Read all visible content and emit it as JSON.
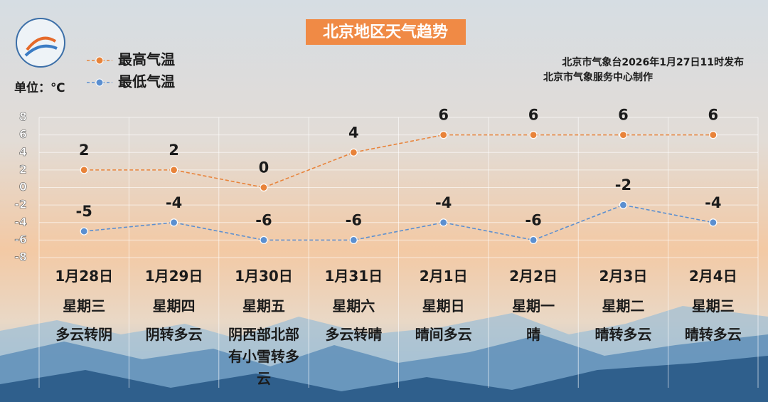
{
  "chart_data": {
    "type": "line",
    "title": "北京地区天气趋势",
    "unit_label": "单位：℃",
    "source": [
      "北京市气象台2026年1月27日11时发布",
      "北京市气象服务中心制作"
    ],
    "categories": [
      "1月28日",
      "1月29日",
      "1月30日",
      "1月31日",
      "2月1日",
      "2月2日",
      "2月3日",
      "2月4日"
    ],
    "weekdays": [
      "星期三",
      "星期四",
      "星期五",
      "星期六",
      "星期日",
      "星期一",
      "星期二",
      "星期三"
    ],
    "weather": [
      "多云转阴",
      "阴转多云",
      "阴西部北部有小雪转多云",
      "多云转晴",
      "晴间多云",
      "晴",
      "晴转多云",
      "晴转多云"
    ],
    "series": [
      {
        "name": "最高气温",
        "color": "#e8833a",
        "values": [
          2,
          2,
          0,
          4,
          6,
          6,
          6,
          6
        ]
      },
      {
        "name": "最低气温",
        "color": "#5b8fd0",
        "values": [
          -5,
          -4,
          -6,
          -6,
          -4,
          -6,
          -2,
          -4
        ]
      }
    ],
    "ylim": [
      -8,
      8
    ],
    "yticks": [
      8,
      6,
      4,
      2,
      0,
      -2,
      -4,
      -6,
      -8
    ],
    "grid": true
  }
}
